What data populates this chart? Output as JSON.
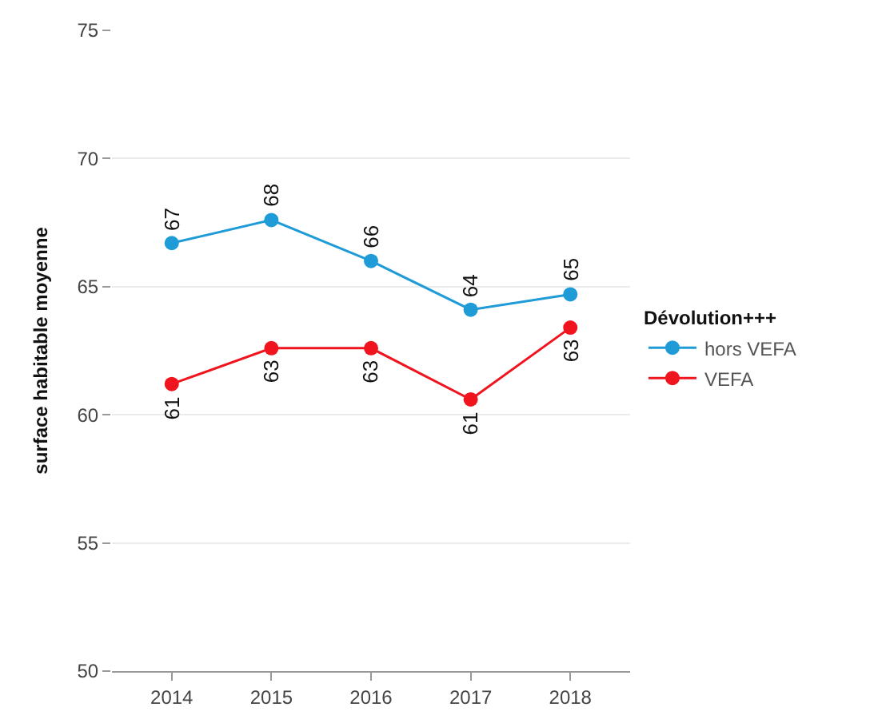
{
  "chart_data": {
    "type": "line",
    "ylabel": "surface habitable moyenne",
    "legend_title": "Dévolution+++",
    "categories": [
      "2014",
      "2015",
      "2016",
      "2017",
      "2018"
    ],
    "series": [
      {
        "name": "hors VEFA",
        "color": "#1f9bd7",
        "values": [
          66.7,
          67.6,
          66.0,
          64.1,
          64.7
        ],
        "value_labels": [
          "67",
          "68",
          "66",
          "64",
          "65"
        ]
      },
      {
        "name": "VEFA",
        "color": "#f0141e",
        "values": [
          61.2,
          62.6,
          62.6,
          60.6,
          63.4
        ],
        "value_labels": [
          "61",
          "63",
          "63",
          "61",
          "63"
        ]
      }
    ],
    "ylim": [
      50,
      75
    ],
    "yticks": [
      50,
      55,
      60,
      65,
      70,
      75
    ],
    "grid": "y",
    "legend": "right",
    "marker": "circle",
    "line_style": "solid"
  }
}
